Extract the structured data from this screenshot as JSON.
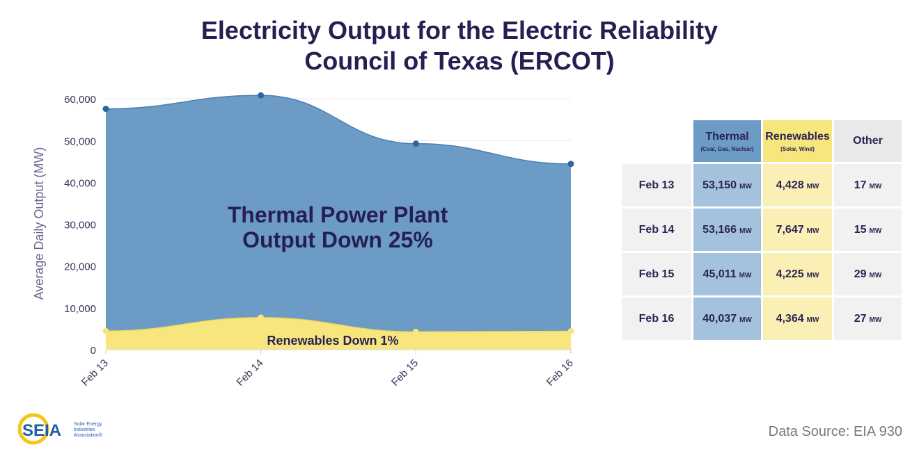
{
  "title_line1": "Electricity Output for the Electric Reliability",
  "title_line2": "Council of Texas (ERCOT)",
  "chart_data": {
    "type": "area",
    "categories": [
      "Feb 13",
      "Feb 14",
      "Feb 15",
      "Feb 16"
    ],
    "series": [
      {
        "name": "Thermal",
        "values": [
          53150,
          53166,
          45011,
          40037
        ],
        "color": "#6c9bc6",
        "line_color": "#4a7fb4"
      },
      {
        "name": "Renewables",
        "values": [
          4428,
          7647,
          4225,
          4364
        ],
        "color": "#f7e57e",
        "line_color": "#f2d95a"
      },
      {
        "name": "Other",
        "values": [
          17,
          15,
          29,
          27
        ],
        "color": "#e9e9e9"
      }
    ],
    "stacked": true,
    "ylabel": "Average Daily Output (MW)",
    "ylim": [
      0,
      60000
    ],
    "yticks": [
      0,
      10000,
      20000,
      30000,
      40000,
      50000,
      60000
    ],
    "ytick_labels": [
      "0",
      "10,000",
      "20,000",
      "30,000",
      "40,000",
      "50,000",
      "60,000"
    ],
    "grid": true,
    "annotations": {
      "thermal_line1": "Thermal Power Plant",
      "thermal_line2": "Output Down 25%",
      "renewables": "Renewables Down 1%"
    }
  },
  "table": {
    "headers": [
      {
        "label": "Thermal",
        "sub": "(Coal, Gas, Nuclear)"
      },
      {
        "label": "Renewables",
        "sub": "(Solar, Wind)"
      },
      {
        "label": "Other",
        "sub": ""
      }
    ],
    "unit": "MW",
    "rows": [
      {
        "date": "Feb 13",
        "thermal": "53,150",
        "renewables": "4,428",
        "other": "17"
      },
      {
        "date": "Feb 14",
        "thermal": "53,166",
        "renewables": "7,647",
        "other": "15"
      },
      {
        "date": "Feb 15",
        "thermal": "45,011",
        "renewables": "4,225",
        "other": "29"
      },
      {
        "date": "Feb 16",
        "thermal": "40,037",
        "renewables": "4,364",
        "other": "27"
      }
    ]
  },
  "logo": {
    "text": "SEIA",
    "line1": "Solar Energy",
    "line2": "Industries",
    "line3": "Association®"
  },
  "source": "Data Source: EIA 930"
}
